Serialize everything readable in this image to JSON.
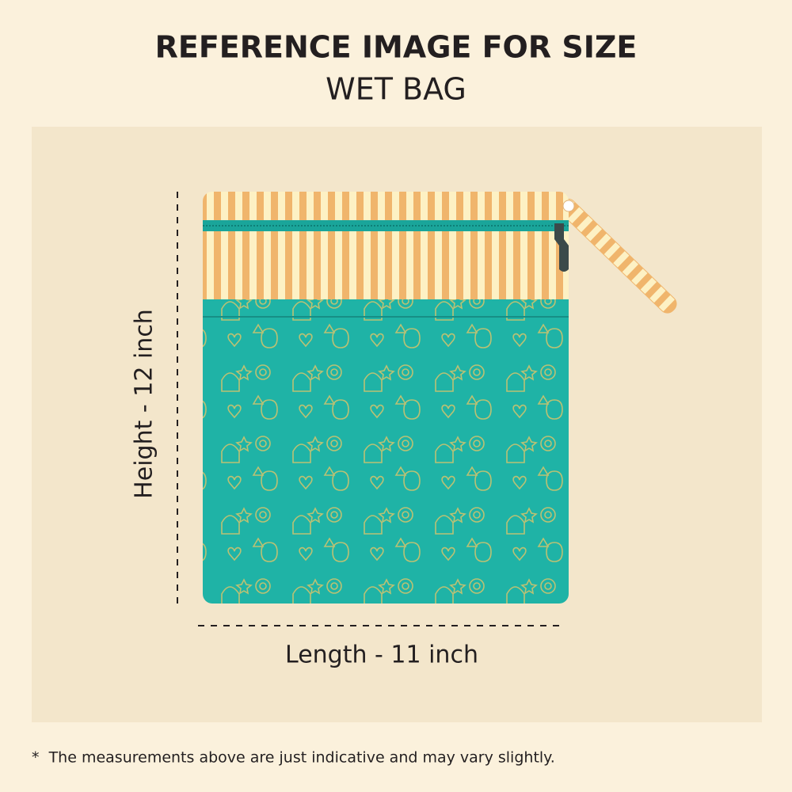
{
  "header": {
    "title": "REFERENCE IMAGE FOR SIZE",
    "subtitle": "WET BAG"
  },
  "dimensions": {
    "height_label": "Height - 12  inch",
    "length_label": "Length - 11 inch"
  },
  "footnote": "*  The measurements above are just indicative and may vary slightly."
}
